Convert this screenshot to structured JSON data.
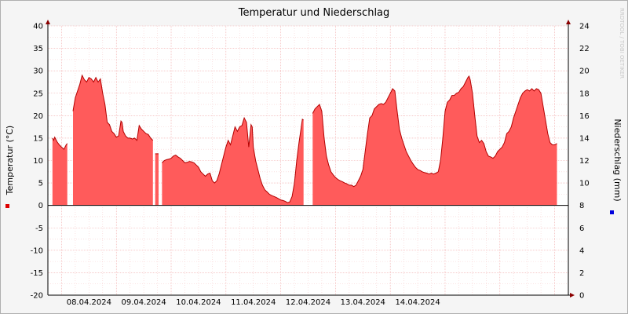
{
  "chart_data": {
    "type": "area",
    "title": "Temperatur und Niederschlag",
    "ylabel_left": "Temperatur (°C)",
    "ylabel_right": "Niederschlag (mm)",
    "watermark": "RRDTOOL / TOBI OETIKER",
    "x_ticks": [
      "08.04.2024",
      "09.04.2024",
      "10.04.2024",
      "11.04.2024",
      "12.04.2024",
      "13.04.2024",
      "14.04.2024"
    ],
    "y_left": {
      "min": -20,
      "max": 40,
      "ticks": [
        40,
        35,
        30,
        25,
        20,
        15,
        10,
        5,
        0,
        -5,
        -10,
        -15,
        -20
      ]
    },
    "y_right": {
      "min": 0,
      "max": 24,
      "ticks": [
        24,
        22,
        20,
        18,
        16,
        14,
        12,
        10,
        8,
        6,
        4,
        2,
        0
      ]
    },
    "grid": true,
    "colors": {
      "area": "#ff5b5b",
      "line": "#b30000",
      "grid": "#f0a0a0",
      "axis": "#000000",
      "arrow": "#8b0000",
      "temp_marker": "#dd0000",
      "precip_marker": "#0000dd"
    },
    "series": [
      {
        "name": "Temperatur",
        "x_unit": "hours since 08.04.2024 00:00 (local)",
        "points": [
          [
            -4.0,
            15
          ],
          [
            -3.5,
            14.5
          ],
          [
            -3.0,
            15.2
          ],
          [
            -2.0,
            14.2
          ],
          [
            -1.0,
            13.5
          ],
          [
            0.0,
            13
          ],
          [
            1.0,
            12.5
          ],
          [
            2.0,
            13.5
          ],
          [
            2.5,
            13.8
          ],
          null,
          [
            5.0,
            21
          ],
          [
            6.0,
            24
          ],
          [
            7.0,
            25.5
          ],
          [
            8.0,
            27
          ],
          [
            9.0,
            29
          ],
          [
            10.0,
            28
          ],
          [
            11.0,
            27.5
          ],
          [
            12.0,
            28.5
          ],
          [
            13.0,
            28.2
          ],
          [
            14.0,
            27.5
          ],
          [
            15.0,
            28.5
          ],
          [
            16.0,
            27.5
          ],
          [
            17.0,
            28.2
          ],
          [
            18.0,
            25
          ],
          [
            19.0,
            22.5
          ],
          [
            20.0,
            18.5
          ],
          [
            21.0,
            18
          ],
          [
            22.0,
            16.5
          ],
          [
            23.0,
            16
          ],
          [
            24.0,
            15.2
          ],
          [
            25.0,
            15.5
          ],
          [
            26.0,
            18.8
          ],
          [
            26.5,
            18.5
          ],
          [
            27.0,
            16.5
          ],
          [
            28.0,
            15.5
          ],
          [
            29.0,
            15
          ],
          [
            30.0,
            15
          ],
          [
            31.0,
            14.8
          ],
          [
            32.0,
            15
          ],
          [
            33.0,
            14.5
          ],
          [
            34.0,
            17.8
          ],
          [
            35.0,
            17
          ],
          [
            36.0,
            16.5
          ],
          [
            37.0,
            16
          ],
          [
            38.0,
            15.8
          ],
          [
            39.0,
            15
          ],
          [
            40.0,
            14.5
          ],
          null,
          [
            41.0,
            11.5
          ],
          [
            42.5,
            11.5
          ],
          null,
          [
            44.0,
            9.5
          ],
          [
            45.0,
            10
          ],
          [
            46.0,
            10.2
          ],
          [
            47.0,
            10.3
          ],
          [
            48.0,
            10.5
          ],
          [
            49.0,
            11
          ],
          [
            50.0,
            11.2
          ],
          [
            51.0,
            10.8
          ],
          [
            52.0,
            10.5
          ],
          [
            53.0,
            10
          ],
          [
            54.0,
            9.5
          ],
          [
            55.0,
            9.6
          ],
          [
            56.0,
            9.8
          ],
          [
            57.0,
            9.7
          ],
          [
            58.0,
            9.5
          ],
          [
            59.0,
            9
          ],
          [
            60.0,
            8.5
          ],
          [
            61.0,
            7.5
          ],
          [
            62.0,
            7
          ],
          [
            63.0,
            6.5
          ],
          [
            64.0,
            7
          ],
          [
            65.0,
            7.2
          ],
          [
            66.0,
            5.5
          ],
          [
            67.0,
            5
          ],
          [
            68.0,
            5.5
          ],
          [
            69.0,
            7
          ],
          [
            70.0,
            9
          ],
          [
            71.0,
            11
          ],
          [
            72.0,
            13
          ],
          [
            73.0,
            14.5
          ],
          [
            74.0,
            13.5
          ],
          [
            75.0,
            15.5
          ],
          [
            76.0,
            17.5
          ],
          [
            77.0,
            16.5
          ],
          [
            78.0,
            17.5
          ],
          [
            79.0,
            17.8
          ],
          [
            80.0,
            19.5
          ],
          [
            81.0,
            18.5
          ],
          [
            82.0,
            13
          ],
          [
            83.0,
            18
          ],
          [
            83.5,
            17.5
          ],
          [
            84.0,
            13
          ],
          [
            85.0,
            10
          ],
          [
            86.0,
            8
          ],
          [
            87.0,
            6
          ],
          [
            88.0,
            4.5
          ],
          [
            89.0,
            3.5
          ],
          [
            90.0,
            3
          ],
          [
            91.0,
            2.5
          ],
          [
            92.0,
            2.2
          ],
          [
            93.0,
            2
          ],
          [
            94.0,
            1.8
          ],
          [
            95.0,
            1.5
          ],
          [
            96.0,
            1.2
          ],
          [
            97.0,
            1.1
          ],
          [
            98.0,
            0.9
          ],
          [
            99.0,
            0.6
          ],
          [
            100.0,
            0.8
          ],
          [
            101.0,
            2
          ],
          [
            102.0,
            5
          ],
          [
            103.0,
            10
          ],
          [
            104.0,
            14
          ],
          [
            105.0,
            17.5
          ],
          [
            105.5,
            19.2
          ],
          [
            106.0,
            19
          ],
          null,
          [
            110.0,
            20.5
          ],
          [
            111.0,
            21.5
          ],
          [
            112.0,
            22
          ],
          [
            113.0,
            22.5
          ],
          [
            114.0,
            21
          ],
          [
            115.0,
            15
          ],
          [
            116.0,
            11
          ],
          [
            117.0,
            9
          ],
          [
            118.0,
            7.5
          ],
          [
            119.0,
            6.8
          ],
          [
            120.0,
            6.2
          ],
          [
            121.0,
            5.8
          ],
          [
            122.0,
            5.5
          ],
          [
            123.0,
            5.3
          ],
          [
            124.0,
            5
          ],
          [
            125.0,
            4.8
          ],
          [
            126.0,
            4.5
          ],
          [
            127.0,
            4.5
          ],
          [
            128.0,
            4.2
          ],
          [
            129.0,
            4.5
          ],
          [
            130.0,
            5.5
          ],
          [
            131.0,
            6.5
          ],
          [
            132.0,
            8
          ],
          [
            133.0,
            12
          ],
          [
            134.0,
            16
          ],
          [
            135.0,
            19.5
          ],
          [
            136.0,
            20
          ],
          [
            137.0,
            21.5
          ],
          [
            138.0,
            22
          ],
          [
            139.0,
            22.5
          ],
          [
            140.0,
            22.7
          ],
          [
            141.0,
            22.5
          ],
          [
            142.0,
            23
          ],
          [
            143.0,
            24
          ],
          [
            144.0,
            25
          ],
          [
            145.0,
            26
          ],
          [
            146.0,
            25.5
          ],
          [
            147.0,
            21
          ],
          [
            148.0,
            17
          ],
          [
            149.0,
            15
          ],
          [
            150.0,
            13.5
          ],
          [
            151.0,
            12
          ],
          [
            152.0,
            11
          ],
          [
            153.0,
            10
          ],
          [
            154.0,
            9.2
          ],
          [
            155.0,
            8.5
          ],
          [
            156.0,
            8
          ],
          [
            157.0,
            7.8
          ],
          [
            158.0,
            7.5
          ],
          [
            159.0,
            7.3
          ],
          [
            160.0,
            7.2
          ],
          [
            161.0,
            7
          ],
          [
            162.0,
            7.2
          ],
          [
            163.0,
            7
          ],
          [
            164.0,
            7.2
          ],
          [
            165.0,
            7.5
          ],
          [
            166.0,
            10
          ],
          [
            167.0,
            15
          ],
          [
            168.0,
            21
          ],
          [
            169.0,
            23
          ],
          [
            170.0,
            23.5
          ],
          [
            171.0,
            24.5
          ],
          [
            172.0,
            24.5
          ],
          [
            173.0,
            25
          ],
          [
            174.0,
            25.2
          ],
          [
            175.0,
            26
          ],
          [
            176.0,
            26.5
          ],
          [
            177.0,
            27.5
          ],
          [
            178.0,
            28.5
          ],
          [
            178.5,
            28.8
          ],
          [
            179.0,
            28
          ],
          [
            180.0,
            25
          ],
          [
            181.0,
            20
          ],
          [
            182.0,
            15.5
          ],
          [
            183.0,
            14
          ],
          [
            184.0,
            14.5
          ],
          [
            185.0,
            13.8
          ],
          [
            186.0,
            12
          ],
          [
            187.0,
            11
          ],
          [
            188.0,
            10.8
          ],
          [
            189.0,
            10.5
          ],
          [
            190.0,
            11
          ],
          [
            191.0,
            12
          ],
          [
            192.0,
            12.5
          ],
          [
            193.0,
            13
          ],
          [
            194.0,
            14
          ],
          [
            195.0,
            16
          ],
          [
            196.0,
            16.5
          ],
          [
            197.0,
            17.5
          ],
          [
            198.0,
            19.5
          ],
          [
            199.0,
            21
          ],
          [
            200.0,
            22.5
          ],
          [
            201.0,
            24
          ],
          [
            202.0,
            25
          ],
          [
            203.0,
            25.5
          ],
          [
            204.0,
            25.8
          ],
          [
            205.0,
            25.5
          ],
          [
            206.0,
            26
          ],
          [
            207.0,
            25.5
          ],
          [
            208.0,
            26
          ],
          [
            209.0,
            25.8
          ],
          [
            210.0,
            25
          ],
          [
            211.0,
            22
          ],
          [
            212.0,
            19
          ],
          [
            213.0,
            16
          ],
          [
            214.0,
            14
          ],
          [
            215.0,
            13.5
          ],
          [
            216.0,
            13.5
          ],
          [
            217.0,
            13.8
          ]
        ]
      }
    ]
  }
}
